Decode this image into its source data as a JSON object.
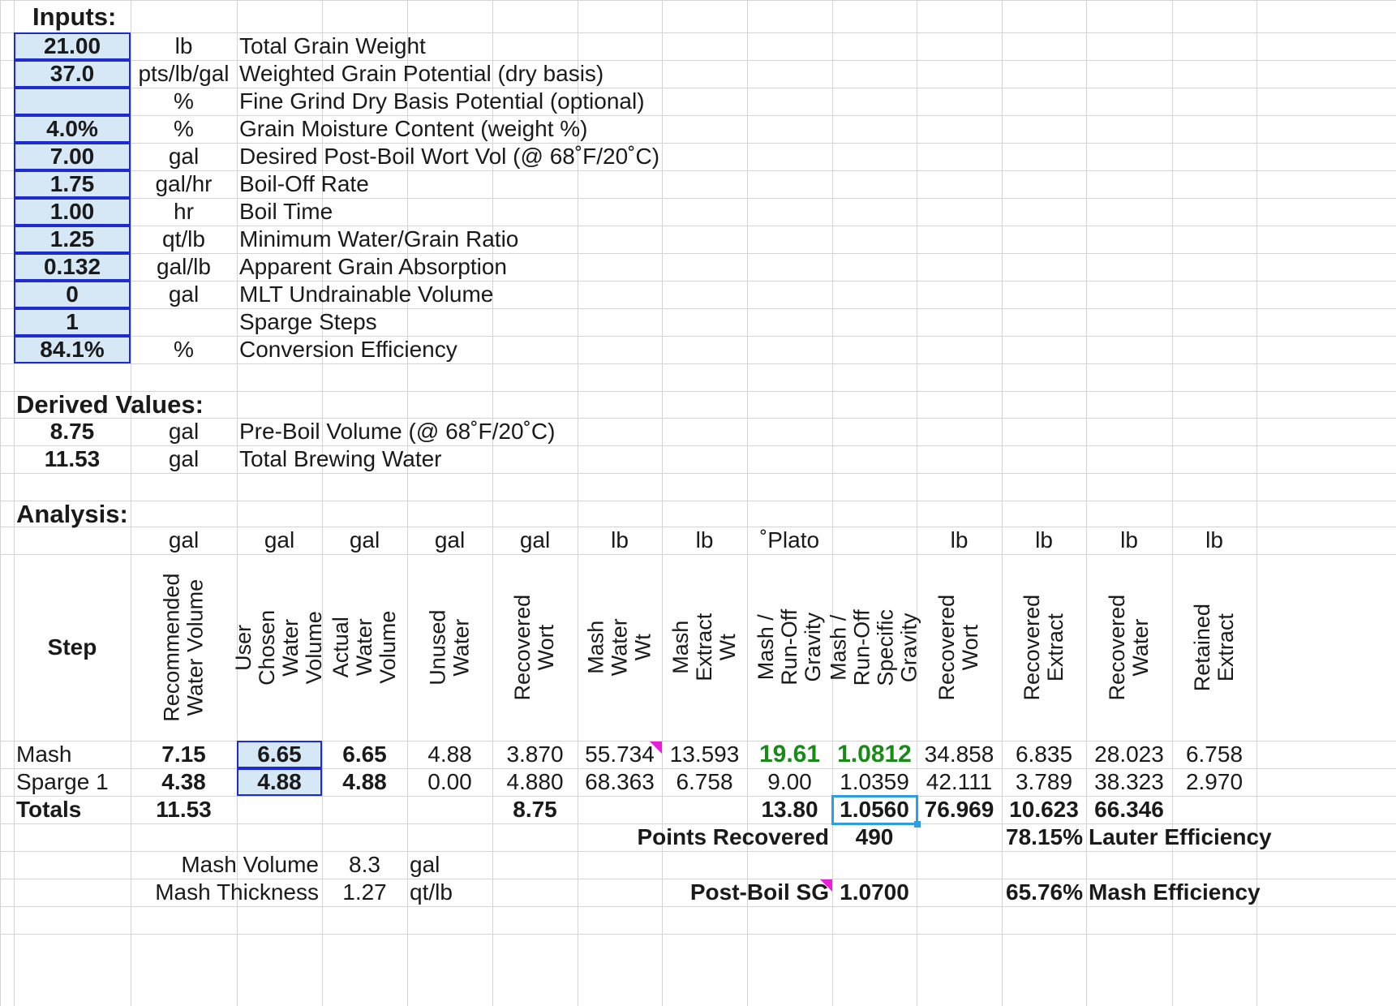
{
  "inputs": {
    "title": "Inputs:",
    "rows": [
      {
        "value": "21.00",
        "unit": "lb",
        "label": "Total Grain Weight"
      },
      {
        "value": "37.0",
        "unit": "pts/lb/gal",
        "label": "Weighted Grain Potential (dry basis)"
      },
      {
        "value": "",
        "unit": "%",
        "label": "Fine Grind Dry Basis Potential (optional)"
      },
      {
        "value": "4.0%",
        "unit": "%",
        "label": "Grain Moisture Content (weight %)"
      },
      {
        "value": "7.00",
        "unit": "gal",
        "label": "Desired Post-Boil Wort Vol (@ 68˚F/20˚C)"
      },
      {
        "value": "1.75",
        "unit": "gal/hr",
        "label": "Boil-Off Rate"
      },
      {
        "value": "1.00",
        "unit": "hr",
        "label": "Boil Time"
      },
      {
        "value": "1.25",
        "unit": "qt/lb",
        "label": "Minimum Water/Grain Ratio"
      },
      {
        "value": "0.132",
        "unit": "gal/lb",
        "label": "Apparent Grain Absorption"
      },
      {
        "value": "0",
        "unit": "gal",
        "label": "MLT Undrainable Volume"
      },
      {
        "value": "1",
        "unit": "",
        "label": "Sparge Steps"
      },
      {
        "value": "84.1%",
        "unit": "%",
        "label": "Conversion Efficiency"
      }
    ]
  },
  "derived": {
    "title": "Derived Values:",
    "rows": [
      {
        "value": "8.75",
        "unit": "gal",
        "label": "Pre-Boil Volume  (@ 68˚F/20˚C)"
      },
      {
        "value": "11.53",
        "unit": "gal",
        "label": "Total Brewing Water"
      }
    ]
  },
  "analysis": {
    "title": "Analysis:",
    "step_header": "Step",
    "units": [
      "gal",
      "gal",
      "gal",
      "gal",
      "gal",
      "lb",
      "lb",
      "˚Plato",
      "",
      "lb",
      "lb",
      "lb",
      "lb"
    ],
    "columns": [
      "Recommended Water Volume",
      "User Chosen Water Volume",
      "Actual  Water Volume",
      "Unused Water",
      "Recovered Wort",
      "Mash Water Wt",
      "Mash Extract Wt",
      "Mash / Run-Off Gravity",
      "Mash / Run-Off Specific Gravity",
      "Recovered Wort",
      "Recovered Extract",
      "Recovered Water",
      "Retained Extract"
    ],
    "rows": [
      {
        "step": "Mash",
        "values": [
          "7.15",
          "6.65",
          "6.65",
          "4.88",
          "3.870",
          "55.734",
          "13.593",
          "19.61",
          "1.0812",
          "34.858",
          "6.835",
          "28.023",
          "6.758"
        ]
      },
      {
        "step": "Sparge 1",
        "values": [
          "4.38",
          "4.88",
          "4.88",
          "0.00",
          "4.880",
          "68.363",
          "6.758",
          "9.00",
          "1.0359",
          "42.111",
          "3.789",
          "38.323",
          "2.970"
        ]
      }
    ],
    "totals": {
      "step": "Totals",
      "recommended": "11.53",
      "recovered_wort": "8.75",
      "gravity": "13.80",
      "specific_gravity": "1.0560",
      "recovered_wort_wt": "76.969",
      "recovered_extract": "10.623",
      "recovered_water": "66.346"
    },
    "points_recovered": {
      "label": "Points Recovered",
      "value": "490"
    },
    "lauter_efficiency": {
      "value": "78.15%",
      "label": "Lauter Efficiency"
    },
    "mash_volume": {
      "label": "Mash Volume",
      "value": "8.3",
      "unit": "gal"
    },
    "mash_thickness": {
      "label": "Mash Thickness",
      "value": "1.27",
      "unit": "qt/lb"
    },
    "post_boil_sg": {
      "label": "Post-Boil SG",
      "value": "1.0700"
    },
    "mash_efficiency": {
      "value": "65.76%",
      "label": "Mash Efficiency"
    }
  }
}
